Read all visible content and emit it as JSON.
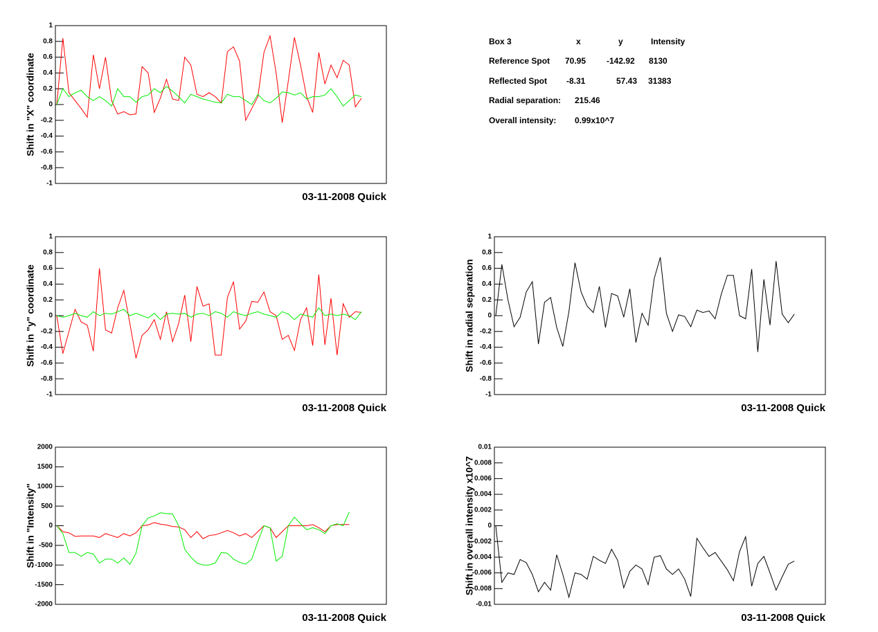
{
  "chart_data": [
    {
      "type": "line",
      "title": "03-11-2008 Quick",
      "ylabel": "Shift in \"X\" coordinate",
      "ylim": [
        -1,
        1
      ],
      "yticks": [
        -1,
        -0.8,
        -0.6,
        -0.4,
        -0.2,
        0,
        0.2,
        0.4,
        0.6,
        0.8,
        1
      ],
      "series": [
        {
          "color": "#ff0000",
          "values": [
            0,
            0.84,
            0.15,
            0.05,
            -0.05,
            -0.16,
            0.63,
            0.2,
            0.6,
            0.05,
            -0.12,
            -0.09,
            -0.13,
            -0.12,
            0.48,
            0.4,
            -0.1,
            0.08,
            0.32,
            0.07,
            0.05,
            0.6,
            0.5,
            0.13,
            0.1,
            0.15,
            0.1,
            0.02,
            0.67,
            0.73,
            0.55,
            -0.2,
            -0.05,
            0.1,
            0.66,
            0.87,
            0.4,
            -0.23,
            0.3,
            0.85,
            0.5,
            0.1,
            -0.1,
            0.66,
            0.26,
            0.5,
            0.34,
            0.56,
            0.5,
            -0.03,
            0.08
          ]
        },
        {
          "color": "#00ee00",
          "values": [
            0,
            0.2,
            0.1,
            0.15,
            0.18,
            0.1,
            0.05,
            0.1,
            0.05,
            -0.02,
            0.2,
            0.1,
            0.1,
            0.03,
            0.1,
            0.12,
            0.2,
            0.15,
            0.23,
            0.17,
            0.1,
            0.02,
            0.13,
            0.1,
            0.07,
            0.05,
            0.03,
            0.02,
            0.13,
            0.1,
            0.1,
            0.05,
            0,
            0.13,
            0.05,
            0.02,
            0.08,
            0.16,
            0.15,
            0.12,
            0.15,
            0.07,
            0.1,
            0.1,
            0.12,
            0.2,
            0.1,
            -0.02,
            0.05,
            0.12,
            0.1
          ]
        }
      ]
    },
    {
      "type": "line",
      "title": "03-11-2008 Quick",
      "ylabel": "Shift in \"y\" coordinate",
      "ylim": [
        -1,
        1
      ],
      "yticks": [
        -1,
        -0.8,
        -0.6,
        -0.4,
        -0.2,
        0,
        0.2,
        0.4,
        0.6,
        0.8,
        1
      ],
      "series": [
        {
          "color": "#ff0000",
          "values": [
            0,
            -0.48,
            -0.2,
            0.08,
            -0.08,
            -0.12,
            -0.45,
            0.6,
            -0.18,
            -0.22,
            0.1,
            0.32,
            -0.1,
            -0.54,
            -0.25,
            -0.18,
            -0.05,
            -0.3,
            0.05,
            -0.33,
            -0.1,
            0.26,
            -0.33,
            0.37,
            0.12,
            0.15,
            -0.5,
            -0.5,
            0.23,
            0.43,
            -0.17,
            -0.07,
            0.18,
            0.17,
            0.3,
            0.05,
            0,
            -0.3,
            -0.25,
            -0.44,
            -0.05,
            0.1,
            -0.38,
            0.52,
            -0.37,
            0.22,
            -0.5,
            0.15,
            -0.02,
            0.05,
            0.04
          ]
        },
        {
          "color": "#00ee00",
          "values": [
            0,
            -0.02,
            0,
            0.03,
            0,
            -0.02,
            0.05,
            0,
            0.03,
            0.02,
            0.05,
            0.08,
            0,
            0.03,
            0,
            -0.03,
            0.03,
            -0.05,
            0.02,
            0.03,
            0.02,
            0.03,
            -0.02,
            0.02,
            0.03,
            0,
            0.05,
            0.03,
            -0.02,
            0.05,
            0.02,
            0,
            0.03,
            0.05,
            0.02,
            0,
            -0.02,
            0.05,
            0.02,
            -0.05,
            0.02,
            0,
            -0.02,
            0.1,
            0,
            0.02,
            0,
            0.02,
            0,
            -0.05,
            0.05
          ]
        }
      ]
    },
    {
      "type": "line",
      "title": "03-11-2008 Quick",
      "ylabel": "Shift in radial separation",
      "ylim": [
        -1,
        1
      ],
      "yticks": [
        -1,
        -0.8,
        -0.6,
        -0.4,
        -0.2,
        0,
        0.2,
        0.4,
        0.6,
        0.8,
        1
      ],
      "series": [
        {
          "color": "#000000",
          "values": [
            0,
            0.65,
            0.2,
            -0.14,
            -0.02,
            0.3,
            0.43,
            -0.36,
            0.17,
            0.23,
            -0.15,
            -0.39,
            0.05,
            0.67,
            0.3,
            0.12,
            0.04,
            0.37,
            -0.15,
            0.28,
            0.25,
            -0.02,
            0.34,
            -0.34,
            0.03,
            -0.12,
            0.47,
            0.74,
            0.03,
            -0.2,
            0.01,
            -0.01,
            -0.14,
            0.07,
            0.04,
            0.06,
            -0.04,
            0.27,
            0.51,
            0.51,
            0,
            -0.04,
            0.59,
            -0.46,
            0.46,
            -0.12,
            0.69,
            0.02,
            -0.09,
            0.02
          ]
        }
      ]
    },
    {
      "type": "line",
      "title": "03-11-2008 Quick",
      "ylabel": "Shift in \"Intensity\"",
      "ylim": [
        -2000,
        2000
      ],
      "yticks": [
        -2000,
        -1500,
        -1000,
        -500,
        0,
        500,
        1000,
        1500,
        2000
      ],
      "series": [
        {
          "color": "#ff0000",
          "values": [
            0,
            -150,
            -180,
            -270,
            -260,
            -260,
            -260,
            -300,
            -200,
            -250,
            -300,
            -200,
            -260,
            -180,
            0,
            20,
            80,
            40,
            20,
            -20,
            -30,
            -100,
            -300,
            -150,
            -330,
            -250,
            -230,
            -180,
            -120,
            -180,
            -260,
            -200,
            -300,
            -150,
            0,
            -50,
            -300,
            -150,
            0,
            0,
            0,
            0,
            30,
            -50,
            -150,
            0,
            30,
            30,
            30
          ]
        },
        {
          "color": "#00ee00",
          "values": [
            0,
            -200,
            -680,
            -680,
            -780,
            -680,
            -720,
            -950,
            -850,
            -850,
            -950,
            -820,
            -980,
            -700,
            0,
            200,
            250,
            330,
            310,
            300,
            0,
            -600,
            -800,
            -950,
            -1000,
            -1000,
            -950,
            -680,
            -700,
            -850,
            -930,
            -980,
            -850,
            -400,
            0,
            -50,
            -900,
            -780,
            0,
            220,
            50,
            -100,
            -50,
            -100,
            -200,
            0,
            50,
            0,
            350
          ]
        }
      ]
    },
    {
      "type": "line",
      "title": "03-11-2008 Quick",
      "ylabel": "Shift in overall intensity x10^7",
      "ylim": [
        -0.01,
        0.01
      ],
      "yticks": [
        -0.01,
        -0.008,
        -0.006,
        -0.004,
        -0.002,
        0,
        0.002,
        0.004,
        0.006,
        0.008,
        0.01
      ],
      "series": [
        {
          "color": "#000000",
          "values": [
            0,
            -0.0072,
            -0.006,
            -0.0062,
            -0.0043,
            -0.0047,
            -0.0062,
            -0.0084,
            -0.0072,
            -0.0082,
            -0.0037,
            -0.0062,
            -0.0091,
            -0.006,
            -0.0062,
            -0.0068,
            -0.0039,
            -0.0044,
            -0.0048,
            -0.003,
            -0.0044,
            -0.0079,
            -0.0058,
            -0.005,
            -0.0055,
            -0.0075,
            -0.004,
            -0.0038,
            -0.0055,
            -0.0062,
            -0.0055,
            -0.0068,
            -0.009,
            -0.0016,
            -0.0028,
            -0.0039,
            -0.0034,
            -0.0045,
            -0.0056,
            -0.007,
            -0.0033,
            -0.0014,
            -0.0077,
            -0.0048,
            -0.0039,
            -0.006,
            -0.0082,
            -0.0065,
            -0.0049,
            -0.0045
          ]
        }
      ]
    }
  ],
  "info_box": {
    "header": [
      "Box 3",
      "x",
      "y",
      "Intensity"
    ],
    "rows": [
      {
        "label": "Reference Spot",
        "color": "#ff0000",
        "values": [
          70.95,
          -142.92,
          8130
        ]
      },
      {
        "label": "Reflected Spot",
        "color": "#00ee00",
        "values": [
          -8.31,
          57.43,
          31383
        ]
      }
    ],
    "radial": {
      "label": "Radial separation:",
      "value": 215.46
    },
    "overall": {
      "label": "Overall intensity:",
      "value": "0.99x10^7"
    }
  }
}
